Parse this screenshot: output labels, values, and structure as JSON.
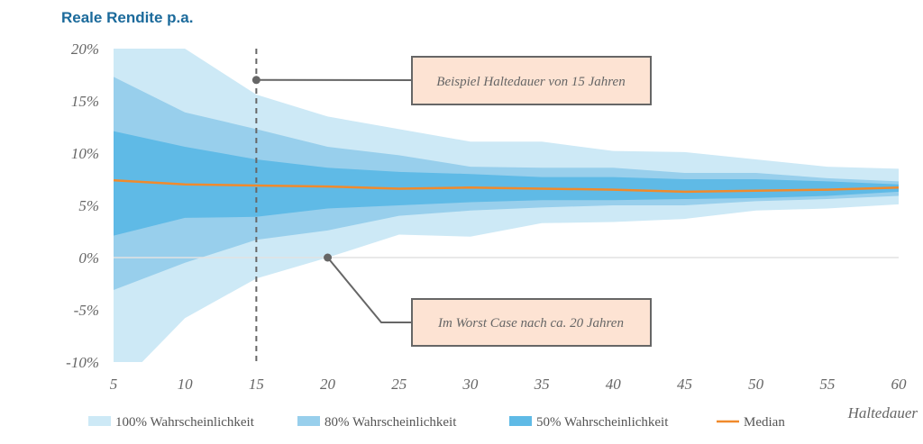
{
  "chart_data": {
    "type": "area",
    "title": "Reale Rendite p.a.",
    "xlabel": "Haltedauer",
    "ylabel": "",
    "xlim": [
      5,
      60
    ],
    "ylim": [
      -10,
      20
    ],
    "x_ticks": [
      "5",
      "10",
      "15",
      "20",
      "25",
      "30",
      "35",
      "40",
      "45",
      "50",
      "55",
      "60"
    ],
    "y_ticks": [
      "20%",
      "15%",
      "10%",
      "5%",
      "0%",
      "-5%",
      "-10%"
    ],
    "y_tick_values": [
      20,
      15,
      10,
      5,
      0,
      -5,
      -10
    ],
    "x": [
      5,
      10,
      15,
      20,
      25,
      30,
      35,
      40,
      45,
      50,
      55,
      60
    ],
    "bands": [
      {
        "name": "100% Wahrscheinlichkeit",
        "color": "#cde9f6",
        "upper": [
          [
            5,
            20
          ],
          [
            10,
            20
          ],
          [
            15,
            15.6
          ],
          [
            20,
            13.5
          ],
          [
            25,
            12.3
          ],
          [
            30,
            11.1
          ],
          [
            35,
            11.1
          ],
          [
            40,
            10.2
          ],
          [
            45,
            10.1
          ],
          [
            50,
            9.4
          ],
          [
            55,
            8.7
          ],
          [
            60,
            8.5
          ]
        ],
        "lower": [
          [
            5,
            -10
          ],
          [
            7,
            -10
          ],
          [
            10,
            -5.8
          ],
          [
            15,
            -2
          ],
          [
            20,
            0
          ],
          [
            25,
            2.2
          ],
          [
            30,
            2.0
          ],
          [
            35,
            3.3
          ],
          [
            40,
            3.4
          ],
          [
            45,
            3.7
          ],
          [
            50,
            4.5
          ],
          [
            55,
            4.7
          ],
          [
            60,
            5.1
          ]
        ]
      },
      {
        "name": "80% Wahrscheinlichkeit",
        "color": "#98cfec",
        "upper": [
          [
            5,
            17.3
          ],
          [
            10,
            13.9
          ],
          [
            15,
            12.3
          ],
          [
            20,
            10.6
          ],
          [
            25,
            9.8
          ],
          [
            30,
            8.7
          ],
          [
            35,
            8.6
          ],
          [
            40,
            8.6
          ],
          [
            45,
            8.1
          ],
          [
            50,
            8.1
          ],
          [
            55,
            7.6
          ],
          [
            60,
            7.3
          ]
        ],
        "lower": [
          [
            5,
            -3.1
          ],
          [
            10,
            -0.5
          ],
          [
            15,
            1.7
          ],
          [
            20,
            2.6
          ],
          [
            25,
            4.0
          ],
          [
            30,
            4.5
          ],
          [
            35,
            4.8
          ],
          [
            40,
            5.0
          ],
          [
            45,
            5.0
          ],
          [
            50,
            5.4
          ],
          [
            55,
            5.6
          ],
          [
            60,
            5.9
          ]
        ]
      },
      {
        "name": "50% Wahrscheinlichkeit",
        "color": "#5fbae6",
        "upper": [
          [
            5,
            12.1
          ],
          [
            10,
            10.6
          ],
          [
            15,
            9.4
          ],
          [
            20,
            8.6
          ],
          [
            25,
            8.2
          ],
          [
            30,
            8.0
          ],
          [
            35,
            7.7
          ],
          [
            40,
            7.7
          ],
          [
            45,
            7.5
          ],
          [
            50,
            7.5
          ],
          [
            55,
            7.3
          ],
          [
            60,
            7.0
          ]
        ],
        "lower": [
          [
            5,
            2.1
          ],
          [
            10,
            3.8
          ],
          [
            15,
            3.9
          ],
          [
            20,
            4.7
          ],
          [
            25,
            5.0
          ],
          [
            30,
            5.3
          ],
          [
            35,
            5.5
          ],
          [
            40,
            5.5
          ],
          [
            45,
            5.6
          ],
          [
            50,
            5.7
          ],
          [
            55,
            5.9
          ],
          [
            60,
            6.3
          ]
        ]
      }
    ],
    "median": {
      "name": "Median",
      "color": "#f08a2c",
      "values": [
        7.4,
        7.0,
        6.9,
        6.8,
        6.6,
        6.7,
        6.6,
        6.5,
        6.3,
        6.4,
        6.5,
        6.7
      ]
    },
    "annotations": [
      {
        "text": "Beispiel Haltedauer von 15 Jahren",
        "x": 15,
        "y": 17
      },
      {
        "text": "Im Worst Case nach ca. 20 Jahren",
        "x": 20,
        "y": 0
      }
    ],
    "legend_position": "bottom",
    "grid": false
  }
}
